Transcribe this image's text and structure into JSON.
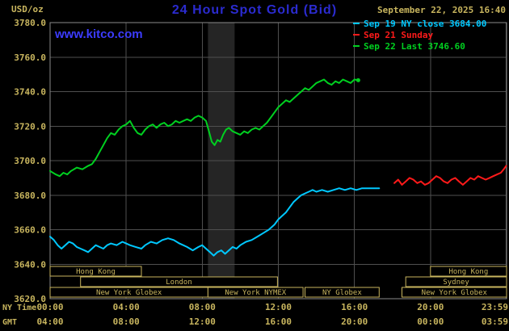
{
  "header": {
    "units": "USD/oz",
    "title": "24 Hour Spot Gold (Bid)",
    "datetime": "September 22, 2025 16:40",
    "watermark": "www.kitco.com",
    "legend": [
      {
        "label": "Sep 19 NY close 3684.00",
        "color": "#00c8ff"
      },
      {
        "label": "Sep 21 Sunday",
        "color": "#ff1a1a"
      },
      {
        "label": "Sep 22 Last 3746.60",
        "color": "#00d020"
      }
    ]
  },
  "colors": {
    "background": "#000000",
    "tan": "#c8b55e",
    "grid": "#4f4f4f",
    "border": "#8a8a8a",
    "title_blue": "#2b2bd0",
    "link_blue": "#3c3cff",
    "band": "#252525"
  },
  "chart_data": {
    "type": "line",
    "title": "24 Hour Spot Gold (Bid)",
    "x_unit": "hours (NY time, 0-24)",
    "y_axis": {
      "unit": "USD/oz",
      "min": 3620,
      "max": 3780,
      "step": 20
    },
    "x_axis": {
      "row1_label": "NY Time",
      "row2_label": "GMT",
      "ticks": [
        {
          "h": 0,
          "ny": "00:00",
          "gmt": "04:00"
        },
        {
          "h": 4,
          "ny": "04:00",
          "gmt": "08:00"
        },
        {
          "h": 8,
          "ny": "08:00",
          "gmt": "12:00"
        },
        {
          "h": 12,
          "ny": "12:00",
          "gmt": "16:00"
        },
        {
          "h": 16,
          "ny": "16:00",
          "gmt": "20:00"
        },
        {
          "h": 20,
          "ny": "20:00",
          "gmt": "00:00"
        },
        {
          "h": 23.983,
          "ny": "23:59",
          "gmt": "03:59"
        }
      ]
    },
    "bands": [
      {
        "start": 8.3,
        "end": 9.7,
        "color": "#252525"
      }
    ],
    "sessions": [
      {
        "label": "Hong Kong",
        "row": 0,
        "start": 0,
        "end": 4.8
      },
      {
        "label": "Hong Kong",
        "row": 0,
        "start": 20,
        "end": 24
      },
      {
        "label": "London",
        "row": 1,
        "start": 1.6,
        "end": 11.95
      },
      {
        "label": "Sydney",
        "row": 1,
        "start": 18.7,
        "end": 24
      },
      {
        "label": "New York Globex",
        "row": 2,
        "start": 0,
        "end": 8.3
      },
      {
        "label": "New York NYMEX",
        "row": 2,
        "start": 8.3,
        "end": 13.3
      },
      {
        "label": "NY Globex",
        "row": 2,
        "start": 13.4,
        "end": 17.3
      },
      {
        "label": "New York Globex",
        "row": 2,
        "start": 18.5,
        "end": 24
      }
    ],
    "series": [
      {
        "id": "sep19",
        "name": "Sep 19 NY close",
        "color": "#00c8ff",
        "close": 3684.0,
        "points": [
          [
            0,
            3656
          ],
          [
            0.2,
            3654
          ],
          [
            0.4,
            3651
          ],
          [
            0.6,
            3649
          ],
          [
            0.8,
            3651
          ],
          [
            1.0,
            3653
          ],
          [
            1.2,
            3652
          ],
          [
            1.4,
            3650
          ],
          [
            1.6,
            3649
          ],
          [
            1.8,
            3648
          ],
          [
            2.0,
            3647
          ],
          [
            2.2,
            3649
          ],
          [
            2.4,
            3651
          ],
          [
            2.6,
            3650
          ],
          [
            2.8,
            3649
          ],
          [
            3.0,
            3651
          ],
          [
            3.2,
            3652
          ],
          [
            3.5,
            3651
          ],
          [
            3.8,
            3653
          ],
          [
            4.0,
            3652
          ],
          [
            4.2,
            3651
          ],
          [
            4.5,
            3650
          ],
          [
            4.8,
            3649
          ],
          [
            5.0,
            3651
          ],
          [
            5.3,
            3653
          ],
          [
            5.6,
            3652
          ],
          [
            5.9,
            3654
          ],
          [
            6.2,
            3655
          ],
          [
            6.5,
            3654
          ],
          [
            6.8,
            3652
          ],
          [
            7.0,
            3651
          ],
          [
            7.2,
            3650
          ],
          [
            7.5,
            3648
          ],
          [
            7.8,
            3650
          ],
          [
            8.0,
            3651
          ],
          [
            8.2,
            3649
          ],
          [
            8.4,
            3647
          ],
          [
            8.6,
            3645
          ],
          [
            8.8,
            3647
          ],
          [
            9.0,
            3648
          ],
          [
            9.2,
            3646
          ],
          [
            9.4,
            3648
          ],
          [
            9.6,
            3650
          ],
          [
            9.8,
            3649
          ],
          [
            10.0,
            3651
          ],
          [
            10.3,
            3653
          ],
          [
            10.6,
            3654
          ],
          [
            10.9,
            3656
          ],
          [
            11.2,
            3658
          ],
          [
            11.5,
            3660
          ],
          [
            11.8,
            3663
          ],
          [
            12.0,
            3666
          ],
          [
            12.2,
            3668
          ],
          [
            12.4,
            3670
          ],
          [
            12.6,
            3673
          ],
          [
            12.8,
            3676
          ],
          [
            13.0,
            3678
          ],
          [
            13.2,
            3680
          ],
          [
            13.4,
            3681
          ],
          [
            13.6,
            3682
          ],
          [
            13.8,
            3683
          ],
          [
            14.0,
            3682
          ],
          [
            14.3,
            3683
          ],
          [
            14.6,
            3682
          ],
          [
            14.9,
            3683
          ],
          [
            15.2,
            3684
          ],
          [
            15.5,
            3683
          ],
          [
            15.8,
            3684
          ],
          [
            16.1,
            3683
          ],
          [
            16.4,
            3684
          ],
          [
            16.7,
            3684
          ],
          [
            17.0,
            3684
          ],
          [
            17.3,
            3684
          ]
        ]
      },
      {
        "id": "sep21",
        "name": "Sep 21 Sunday",
        "color": "#ff1a1a",
        "points": [
          [
            18.1,
            3687
          ],
          [
            18.3,
            3689
          ],
          [
            18.5,
            3686
          ],
          [
            18.7,
            3688
          ],
          [
            18.9,
            3690
          ],
          [
            19.1,
            3689
          ],
          [
            19.3,
            3687
          ],
          [
            19.5,
            3688
          ],
          [
            19.7,
            3686
          ],
          [
            19.9,
            3687
          ],
          [
            20.1,
            3689
          ],
          [
            20.3,
            3691
          ],
          [
            20.5,
            3690
          ],
          [
            20.7,
            3688
          ],
          [
            20.9,
            3687
          ],
          [
            21.1,
            3689
          ],
          [
            21.3,
            3690
          ],
          [
            21.5,
            3688
          ],
          [
            21.7,
            3686
          ],
          [
            21.9,
            3688
          ],
          [
            22.1,
            3690
          ],
          [
            22.3,
            3689
          ],
          [
            22.5,
            3691
          ],
          [
            22.7,
            3690
          ],
          [
            22.9,
            3689
          ],
          [
            23.1,
            3690
          ],
          [
            23.3,
            3691
          ],
          [
            23.5,
            3692
          ],
          [
            23.7,
            3693
          ],
          [
            23.85,
            3695
          ],
          [
            23.98,
            3697
          ]
        ]
      },
      {
        "id": "sep22",
        "name": "Sep 22",
        "color": "#00d020",
        "last": 3746.6,
        "end_dot": true,
        "points": [
          [
            0,
            3694
          ],
          [
            0.3,
            3692
          ],
          [
            0.5,
            3691
          ],
          [
            0.7,
            3693
          ],
          [
            0.9,
            3692
          ],
          [
            1.1,
            3694
          ],
          [
            1.4,
            3696
          ],
          [
            1.7,
            3695
          ],
          [
            2.0,
            3697
          ],
          [
            2.2,
            3698
          ],
          [
            2.4,
            3701
          ],
          [
            2.6,
            3705
          ],
          [
            2.8,
            3709
          ],
          [
            3.0,
            3713
          ],
          [
            3.2,
            3716
          ],
          [
            3.4,
            3715
          ],
          [
            3.6,
            3718
          ],
          [
            3.8,
            3720
          ],
          [
            4.0,
            3721
          ],
          [
            4.2,
            3723
          ],
          [
            4.4,
            3719
          ],
          [
            4.6,
            3716
          ],
          [
            4.8,
            3715
          ],
          [
            5.0,
            3718
          ],
          [
            5.2,
            3720
          ],
          [
            5.4,
            3721
          ],
          [
            5.6,
            3719
          ],
          [
            5.8,
            3721
          ],
          [
            6.0,
            3722
          ],
          [
            6.2,
            3720
          ],
          [
            6.4,
            3721
          ],
          [
            6.6,
            3723
          ],
          [
            6.8,
            3722
          ],
          [
            7.0,
            3723
          ],
          [
            7.2,
            3724
          ],
          [
            7.4,
            3723
          ],
          [
            7.6,
            3725
          ],
          [
            7.8,
            3726
          ],
          [
            8.0,
            3725
          ],
          [
            8.2,
            3723
          ],
          [
            8.35,
            3717
          ],
          [
            8.5,
            3711
          ],
          [
            8.65,
            3709
          ],
          [
            8.8,
            3712
          ],
          [
            8.95,
            3711
          ],
          [
            9.1,
            3715
          ],
          [
            9.25,
            3718
          ],
          [
            9.4,
            3719
          ],
          [
            9.6,
            3717
          ],
          [
            9.8,
            3716
          ],
          [
            10.0,
            3715
          ],
          [
            10.2,
            3717
          ],
          [
            10.4,
            3716
          ],
          [
            10.6,
            3718
          ],
          [
            10.8,
            3719
          ],
          [
            11.0,
            3718
          ],
          [
            11.2,
            3720
          ],
          [
            11.4,
            3722
          ],
          [
            11.6,
            3725
          ],
          [
            11.8,
            3728
          ],
          [
            12.0,
            3731
          ],
          [
            12.2,
            3733
          ],
          [
            12.4,
            3735
          ],
          [
            12.6,
            3734
          ],
          [
            12.8,
            3736
          ],
          [
            13.0,
            3738
          ],
          [
            13.2,
            3740
          ],
          [
            13.4,
            3742
          ],
          [
            13.6,
            3741
          ],
          [
            13.8,
            3743
          ],
          [
            14.0,
            3745
          ],
          [
            14.2,
            3746
          ],
          [
            14.4,
            3747
          ],
          [
            14.6,
            3745
          ],
          [
            14.8,
            3744
          ],
          [
            15.0,
            3746
          ],
          [
            15.2,
            3745
          ],
          [
            15.4,
            3747
          ],
          [
            15.6,
            3746
          ],
          [
            15.8,
            3745
          ],
          [
            16.0,
            3747
          ],
          [
            16.2,
            3746.6
          ]
        ]
      }
    ]
  }
}
